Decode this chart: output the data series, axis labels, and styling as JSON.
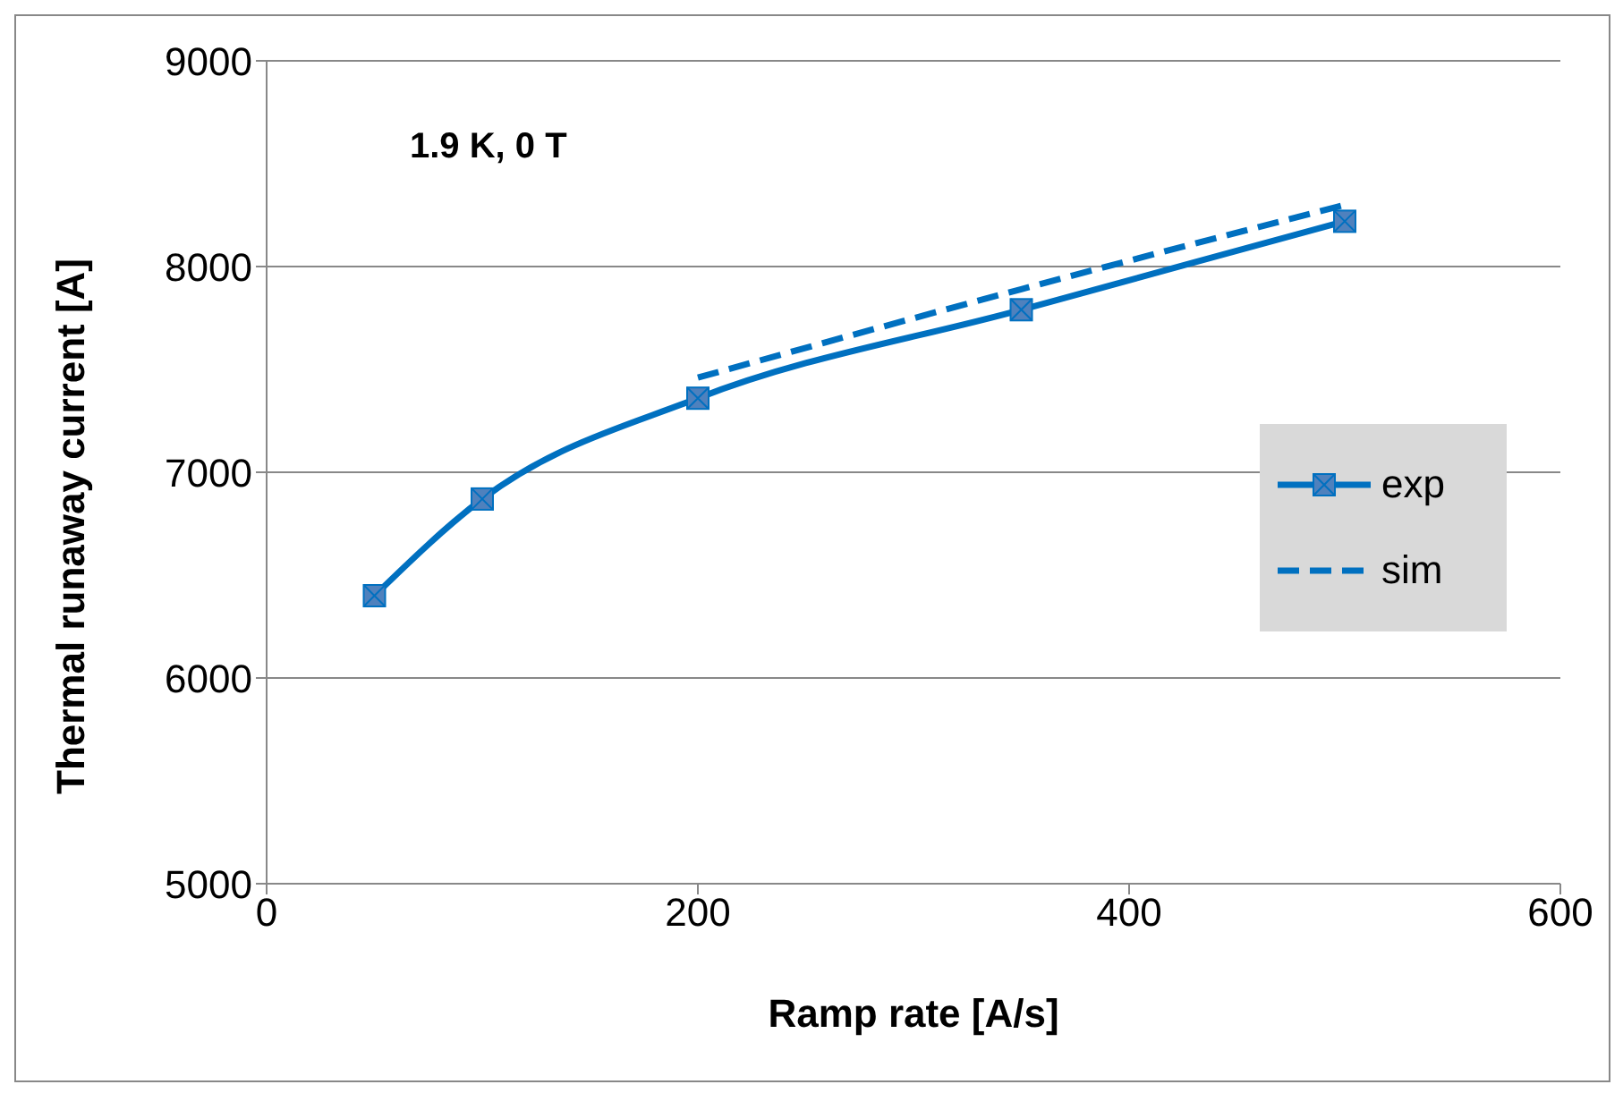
{
  "chart_data": {
    "type": "line",
    "xlabel": "Ramp rate [A/s]",
    "ylabel": "Thermal runaway current [A]",
    "annotations": [
      "1.9 K, 0 T"
    ],
    "series": [
      {
        "name": "exp",
        "color": "#0070c0",
        "x": [
          50,
          100,
          200,
          350,
          500
        ],
        "values": [
          6400,
          6870,
          7360,
          7790,
          8220
        ],
        "marker": "square",
        "line_style": "solid"
      },
      {
        "name": "sim",
        "color": "#0070c0",
        "x": [
          200,
          350,
          500
        ],
        "values": [
          7460,
          7890,
          8300
        ],
        "marker": "none",
        "line_style": "dashed"
      }
    ],
    "xlim": [
      0,
      600
    ],
    "xticks": [
      0,
      200,
      400,
      600
    ],
    "ylim": [
      5000,
      9000
    ],
    "yticks": [
      5000,
      6000,
      7000,
      8000,
      9000
    ],
    "grid": "y",
    "legend": "right"
  }
}
